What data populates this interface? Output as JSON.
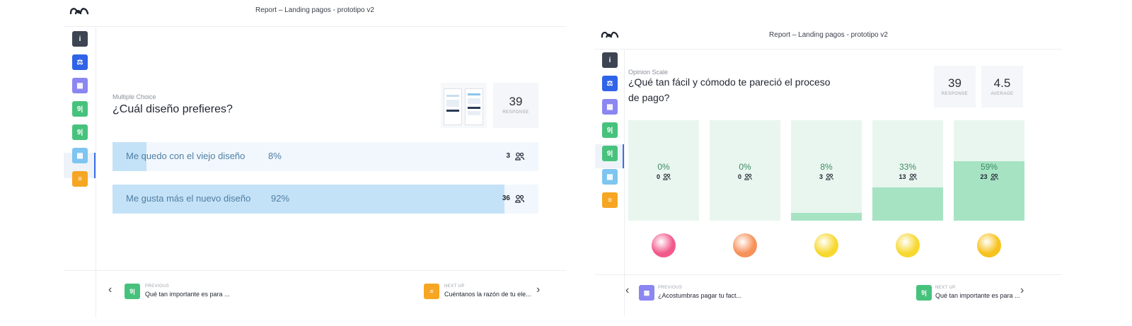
{
  "left_report": {
    "header": {
      "title": "Report – Landing pagos - prototipo v2"
    },
    "sidebar": {
      "items": [
        {
          "icon": "info-icon",
          "color": "#3d4553",
          "glyph": "i"
        },
        {
          "icon": "legal-icon",
          "color": "#2f63e8",
          "glyph": "⚖"
        },
        {
          "icon": "picture-choice-icon",
          "color": "#8b86f2",
          "glyph": "▦"
        },
        {
          "icon": "multiple-choice-icon",
          "color": "#47c27d",
          "glyph": "9|"
        },
        {
          "icon": "multiple-choice-icon",
          "color": "#47c27d",
          "glyph": "9|"
        },
        {
          "icon": "picture-choice-icon",
          "color": "#7ec5f0",
          "glyph": "▦"
        },
        {
          "icon": "long-text-icon",
          "color": "#f6a623",
          "glyph": "≡"
        }
      ]
    },
    "question": {
      "type": "Multiple Choice",
      "title": "¿Cuál diseño prefieres?"
    },
    "stats": {
      "value": "39",
      "label": "RESPONSE"
    },
    "answers": [
      {
        "label": "Me quedo con el viejo diseño",
        "percent_text": "8%",
        "fraction": 0.08,
        "count": "3"
      },
      {
        "label": "Me gusta más el nuevo diseño",
        "percent_text": "92%",
        "fraction": 0.92,
        "count": "36"
      }
    ],
    "footer": {
      "previous_label": "PREVIOUS",
      "previous_text": "Qué tan importante es para ...",
      "next_label": "NEXT UP",
      "next_text": "Cuéntanos la razón de tu ele..."
    }
  },
  "right_report": {
    "header": {
      "title": "Report – Landing pagos - prototipo v2"
    },
    "sidebar": {
      "items": [
        {
          "icon": "info-icon",
          "color": "#3d4553",
          "glyph": "i"
        },
        {
          "icon": "legal-icon",
          "color": "#2f63e8",
          "glyph": "⚖"
        },
        {
          "icon": "picture-choice-icon",
          "color": "#8b86f2",
          "glyph": "▦"
        },
        {
          "icon": "multiple-choice-icon",
          "color": "#47c27d",
          "glyph": "9|"
        },
        {
          "icon": "multiple-choice-icon",
          "color": "#47c27d",
          "glyph": "9|"
        },
        {
          "icon": "picture-choice-icon",
          "color": "#7ec5f0",
          "glyph": "▦"
        },
        {
          "icon": "long-text-icon",
          "color": "#f6a623",
          "glyph": "≡"
        }
      ]
    },
    "question": {
      "type": "Opinion Scale",
      "title_line1": "¿Qué tan fácil y cómodo te pareció el proceso",
      "title_line2": "de pago?"
    },
    "stats": [
      {
        "value": "39",
        "label": "RESPONSE"
      },
      {
        "value": "4.5",
        "label": "AVERAGE"
      }
    ],
    "scale": [
      {
        "percent_text": "0%",
        "fraction": 0.0,
        "count": "0",
        "emoji": "angry-face-icon",
        "color": "#f25a8c"
      },
      {
        "percent_text": "0%",
        "fraction": 0.0,
        "count": "0",
        "emoji": "frowning-face-icon",
        "color": "#f7915a"
      },
      {
        "percent_text": "8%",
        "fraction": 0.08,
        "count": "3",
        "emoji": "neutral-face-icon",
        "color": "#f7d830"
      },
      {
        "percent_text": "33%",
        "fraction": 0.33,
        "count": "13",
        "emoji": "smiling-face-icon",
        "color": "#f7d830"
      },
      {
        "percent_text": "59%",
        "fraction": 0.59,
        "count": "23",
        "emoji": "grinning-face-icon",
        "color": "#f7c21e"
      }
    ],
    "footer": {
      "previous_label": "PREVIOUS",
      "previous_text": "¿Acostumbras pagar tu fact...",
      "next_label": "NEXT UP",
      "next_text": "Qué tan importante es para ..."
    }
  }
}
